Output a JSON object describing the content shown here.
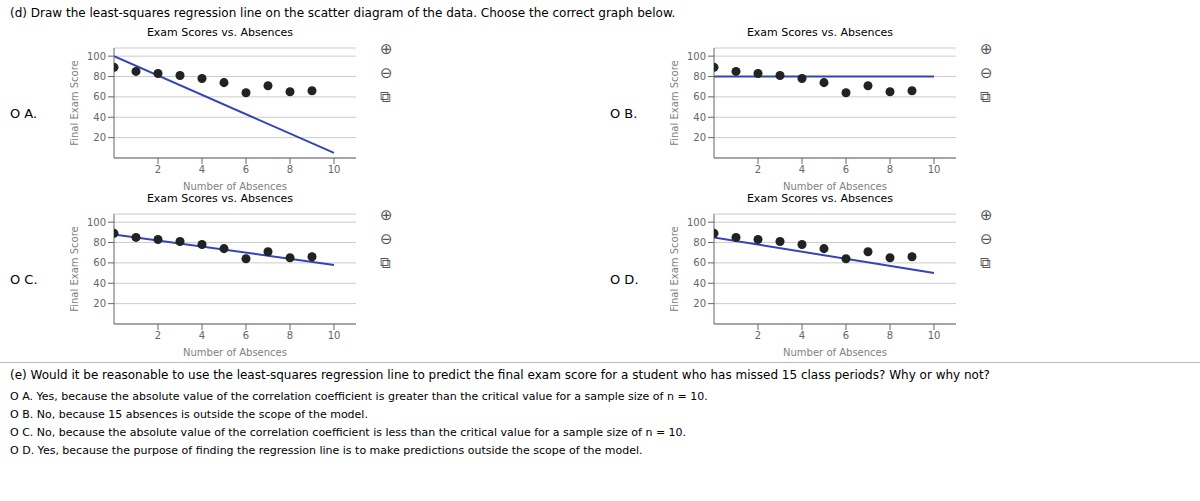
{
  "header": "(d) Draw the least-squares regression line on the scatter diagram of the data. Choose the correct graph below.",
  "part_e": "(e) Would it be reasonable to use the least-squares regression line to predict the final exam score for a student who has missed 15 class periods? Why or why not?",
  "choices": [
    "O A.  Yes, because the absolute value of the correlation coefficient is greater than the critical value for a sample size of n = 10.",
    "O B.  No, because 15 absences is outside the scope of the model.",
    "O C.  No, because the absolute value of the correlation coefficient is less than the critical value for a sample size of n = 10.",
    "O D.  Yes, because the purpose of finding the regression line is to make predictions outside the scope of the model."
  ],
  "chart_data": [
    {
      "type": "scatter",
      "title": "Exam Scores vs. Absences",
      "xlabel": "Number of Absences",
      "ylabel": "Final Exam Score",
      "annotations": [
        "O A.",
        "⊕",
        "⊖",
        "⧉"
      ],
      "xlim": [
        0,
        11
      ],
      "ylim": [
        0,
        108
      ],
      "xticks": [
        2,
        4,
        6,
        8,
        10
      ],
      "yticks": [
        20,
        40,
        60,
        80,
        100
      ],
      "grid": true,
      "series": [
        {
          "type": "scatter",
          "color": "#222222",
          "x": [
            0,
            1,
            2,
            3,
            4,
            5,
            6,
            7,
            8,
            9
          ],
          "values": [
            89,
            85,
            83,
            81,
            78,
            74,
            64,
            71,
            65,
            66
          ]
        },
        {
          "type": "line",
          "color": "#3344bb",
          "x": [
            0,
            10
          ],
          "values": [
            100,
            5
          ]
        }
      ]
    },
    {
      "type": "scatter",
      "title": "Exam Scores vs. Absences",
      "xlabel": "Number of Absences",
      "ylabel": "Final Exam Score",
      "annotations": [
        "O B.",
        "⊕",
        "⊖",
        "⧉"
      ],
      "xlim": [
        0,
        11
      ],
      "ylim": [
        0,
        108
      ],
      "xticks": [
        2,
        4,
        6,
        8,
        10
      ],
      "yticks": [
        20,
        40,
        60,
        80,
        100
      ],
      "grid": true,
      "series": [
        {
          "type": "scatter",
          "color": "#222222",
          "x": [
            0,
            1,
            2,
            3,
            4,
            5,
            6,
            7,
            8,
            9
          ],
          "values": [
            89,
            85,
            83,
            81,
            78,
            74,
            64,
            71,
            65,
            66
          ]
        },
        {
          "type": "line",
          "color": "#3344bb",
          "x": [
            0,
            10
          ],
          "values": [
            80,
            80
          ]
        }
      ]
    },
    {
      "type": "scatter",
      "title": "Exam Scores vs. Absences",
      "xlabel": "Number of Absences",
      "ylabel": "Final Exam Score",
      "annotations": [
        "O C.",
        "⊕",
        "⊖",
        "⧉"
      ],
      "xlim": [
        0,
        11
      ],
      "ylim": [
        0,
        108
      ],
      "xticks": [
        2,
        4,
        6,
        8,
        10
      ],
      "yticks": [
        20,
        40,
        60,
        80,
        100
      ],
      "grid": true,
      "series": [
        {
          "type": "scatter",
          "color": "#222222",
          "x": [
            0,
            1,
            2,
            3,
            4,
            5,
            6,
            7,
            8,
            9
          ],
          "values": [
            89,
            85,
            83,
            81,
            78,
            74,
            64,
            71,
            65,
            66
          ]
        },
        {
          "type": "line",
          "color": "#3344bb",
          "x": [
            0,
            10
          ],
          "values": [
            88,
            58
          ]
        }
      ]
    },
    {
      "type": "scatter",
      "title": "Exam Scores vs. Absences",
      "xlabel": "Number of Absences",
      "ylabel": "Final Exam Score",
      "annotations": [
        "O D.",
        "⊕",
        "⊖",
        "⧉"
      ],
      "xlim": [
        0,
        11
      ],
      "ylim": [
        0,
        108
      ],
      "xticks": [
        2,
        4,
        6,
        8,
        10
      ],
      "yticks": [
        20,
        40,
        60,
        80,
        100
      ],
      "grid": true,
      "series": [
        {
          "type": "scatter",
          "color": "#222222",
          "x": [
            0,
            1,
            2,
            3,
            4,
            5,
            6,
            7,
            8,
            9
          ],
          "values": [
            89,
            85,
            83,
            81,
            78,
            74,
            64,
            71,
            65,
            66
          ]
        },
        {
          "type": "line",
          "color": "#3344bb",
          "x": [
            0,
            10
          ],
          "values": [
            85,
            50
          ]
        }
      ]
    }
  ]
}
